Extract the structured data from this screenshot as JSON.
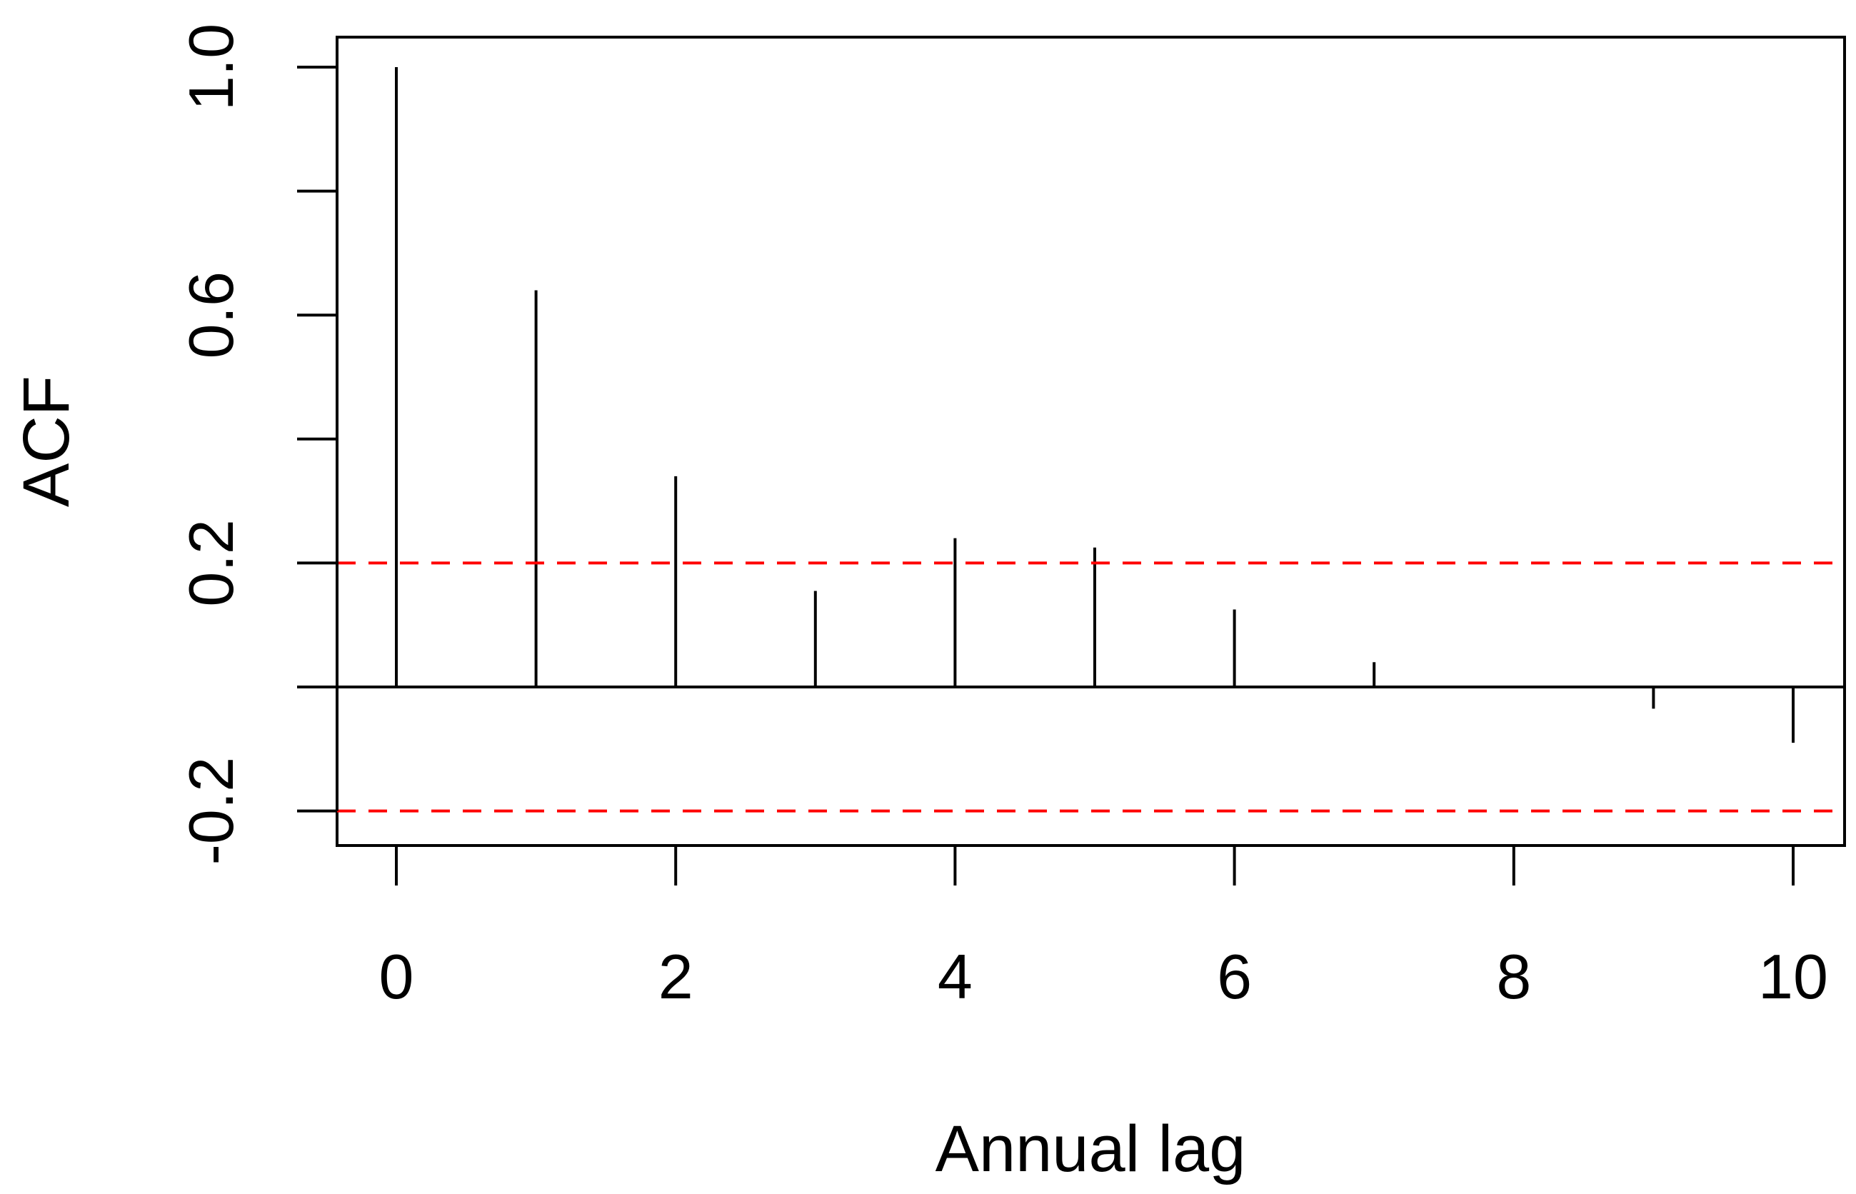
{
  "chart_data": {
    "type": "bar",
    "subtype": "acf-stem",
    "title": "",
    "xlabel": "Annual lag",
    "ylabel": "ACF",
    "xlim": [
      -0.4,
      10.4
    ],
    "ylim": [
      -0.25,
      1.05
    ],
    "x_ticks": [
      0,
      2,
      4,
      6,
      8,
      10
    ],
    "x_tick_labels": [
      "0",
      "2",
      "4",
      "6",
      "8",
      "10"
    ],
    "y_ticks": [
      -0.2,
      0,
      0.2,
      0.4,
      0.6,
      0.8,
      1.0
    ],
    "y_tick_labels": [
      "-0.2",
      "",
      "0.2",
      "",
      "0.6",
      "",
      "1.0"
    ],
    "lags": [
      0,
      1,
      2,
      3,
      4,
      5,
      6,
      7,
      8,
      9,
      10
    ],
    "acf": [
      1.0,
      0.64,
      0.34,
      0.155,
      0.24,
      0.225,
      0.125,
      0.04,
      0.0,
      -0.035,
      -0.09
    ],
    "confidence_bound": 0.2,
    "colors": {
      "bars": "#000000",
      "confidence": "#ff0000",
      "axes": "#000000"
    },
    "grid": false
  }
}
